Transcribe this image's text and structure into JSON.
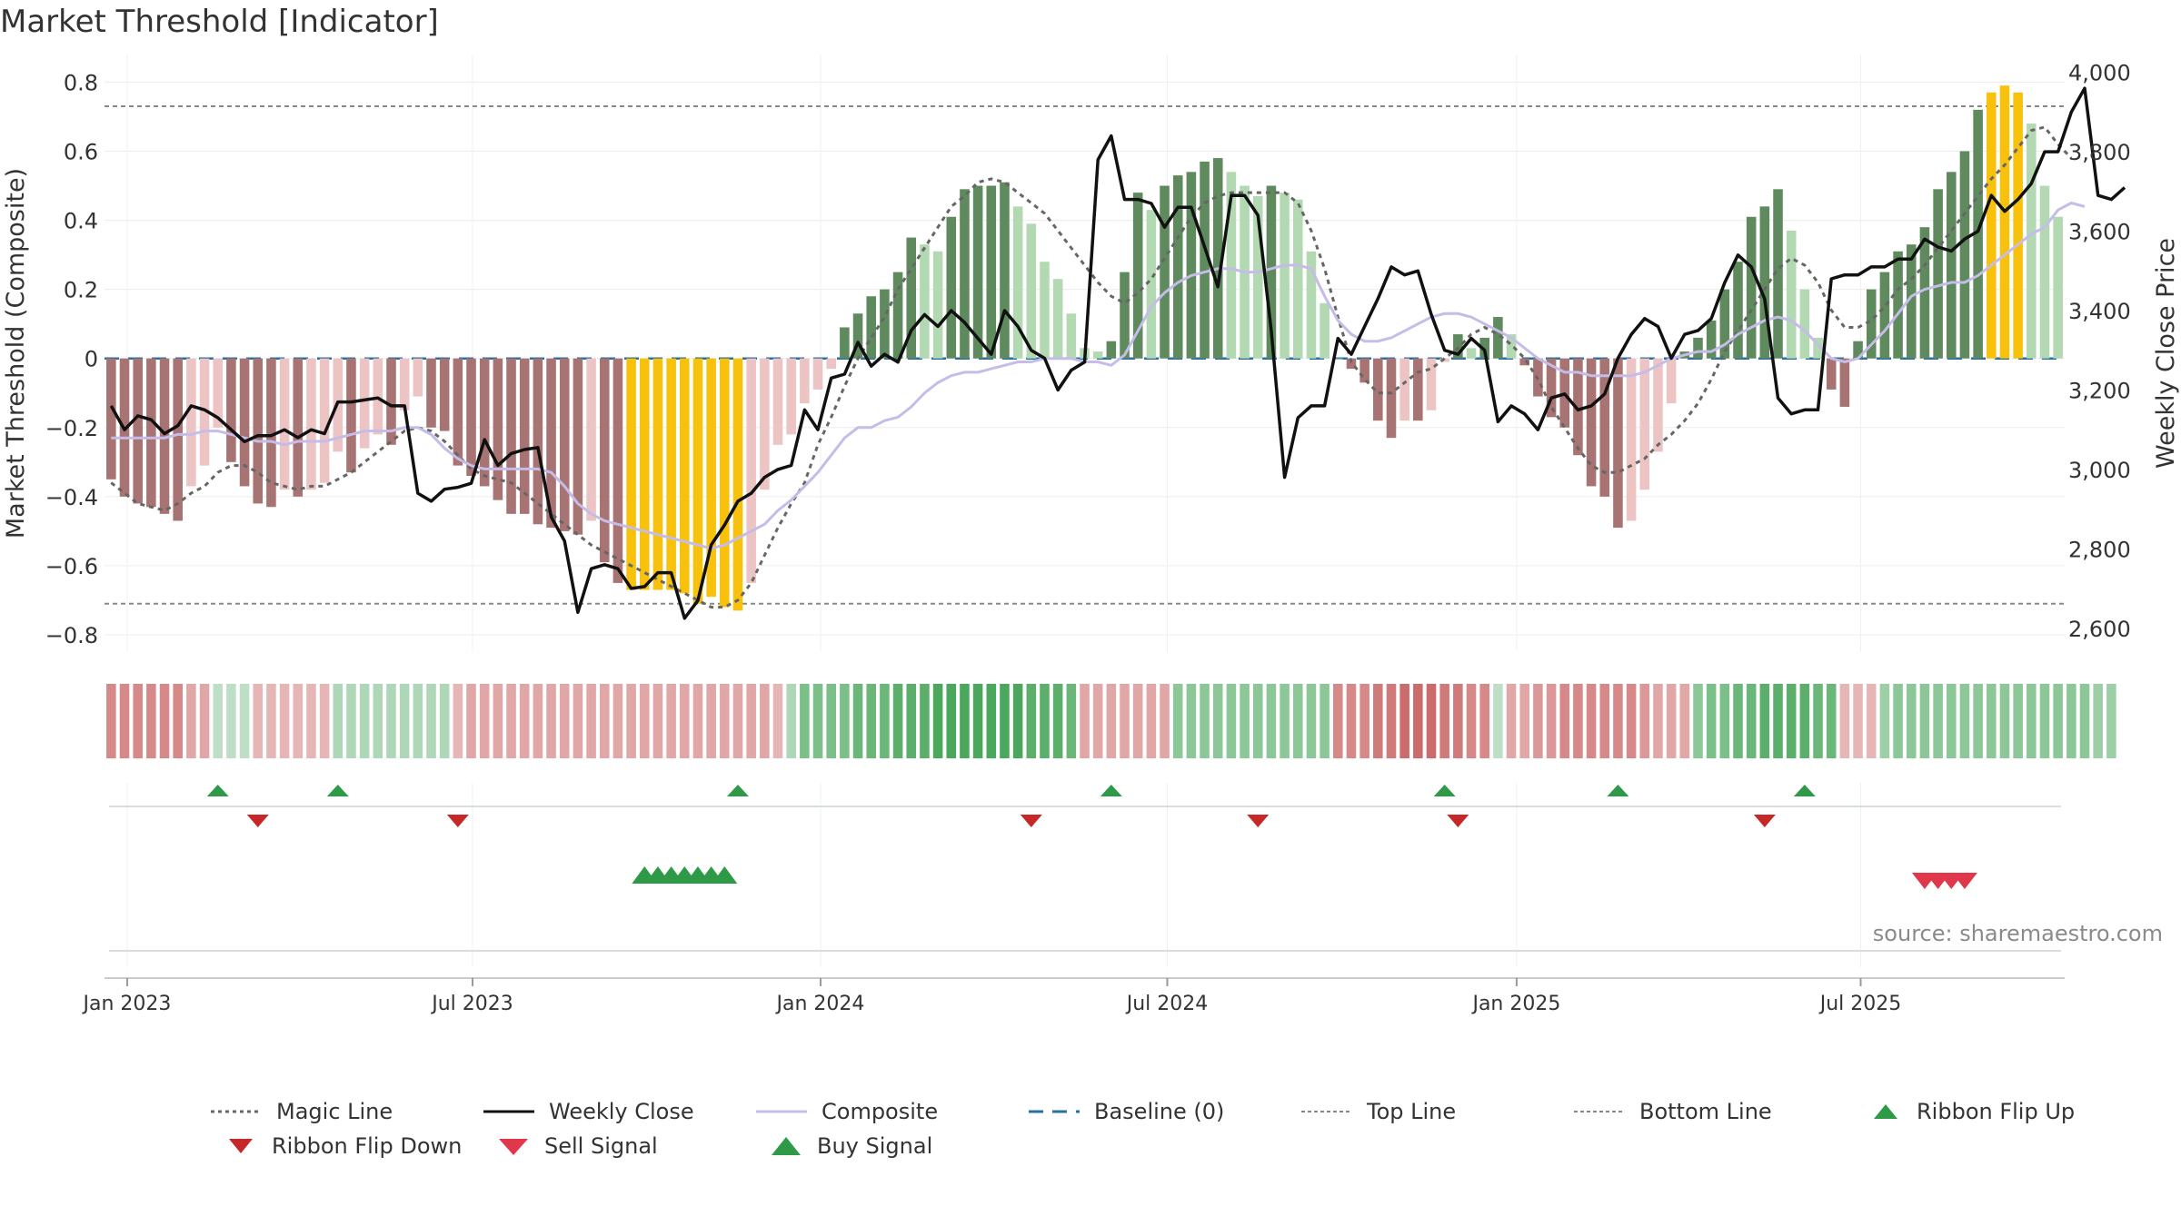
{
  "title": "Market Threshold [Indicator]",
  "source": "source: sharemaestro.com",
  "chart_data": {
    "type": "bar",
    "ylabel": "Market Threshold (Composite)",
    "y2label": "Weekly Close Price",
    "ylim": [
      -0.85,
      0.88
    ],
    "y2lim": [
      2540,
      4045
    ],
    "yticks": [
      0.8,
      0.6,
      0.4,
      0.2,
      0,
      -0.2,
      -0.4,
      -0.6,
      -0.8
    ],
    "ytick_labels": [
      "0.8",
      "0.6",
      "0.4",
      "0.2",
      "0",
      "−0.2",
      "−0.4",
      "−0.6",
      "−0.8"
    ],
    "y2ticks": [
      4000,
      3800,
      3600,
      3400,
      3200,
      3000,
      2800,
      2600
    ],
    "y2tick_labels": [
      "4,000",
      "3,800",
      "3,600",
      "3,400",
      "3,200",
      "3,000",
      "2,800",
      "2,600"
    ],
    "xticks": [
      {
        "week": 1.7,
        "label": "Jan 2023"
      },
      {
        "week": 27.6,
        "label": "Jul 2023"
      },
      {
        "week": 53.7,
        "label": "Jan 2024"
      },
      {
        "week": 79.7,
        "label": "Jul 2024"
      },
      {
        "week": 105.9,
        "label": "Jan 2025"
      },
      {
        "week": 131.7,
        "label": "Jul 2025"
      }
    ],
    "top_line": 0.73,
    "bottom_line": -0.71,
    "baseline": 0,
    "composite": [
      -0.35,
      -0.4,
      -0.42,
      -0.43,
      -0.45,
      -0.47,
      -0.37,
      -0.31,
      -0.2,
      -0.3,
      -0.37,
      -0.42,
      -0.43,
      -0.38,
      -0.4,
      -0.38,
      -0.36,
      -0.27,
      -0.33,
      -0.26,
      -0.22,
      -0.25,
      -0.15,
      -0.11,
      -0.2,
      -0.21,
      -0.31,
      -0.34,
      -0.37,
      -0.41,
      -0.45,
      -0.45,
      -0.48,
      -0.49,
      -0.5,
      -0.51,
      -0.47,
      -0.59,
      -0.65,
      -0.67,
      -0.67,
      -0.67,
      -0.67,
      -0.68,
      -0.71,
      -0.69,
      -0.72,
      -0.73,
      -0.65,
      -0.38,
      -0.25,
      -0.22,
      -0.13,
      -0.09,
      -0.03,
      0.09,
      0.13,
      0.18,
      0.2,
      0.25,
      0.35,
      0.33,
      0.31,
      0.41,
      0.49,
      0.5,
      0.5,
      0.51,
      0.44,
      0.39,
      0.28,
      0.23,
      0.13,
      0.03,
      0.02,
      0.05,
      0.25,
      0.48,
      0.43,
      0.5,
      0.53,
      0.54,
      0.57,
      0.58,
      0.54,
      0.5,
      0.47,
      0.5,
      0.48,
      0.46,
      0.31,
      0.16,
      0.0,
      -0.03,
      -0.07,
      -0.18,
      -0.23,
      -0.18,
      -0.18,
      -0.15,
      -0.01,
      0.07,
      0.03,
      0.06,
      0.12,
      0.07,
      -0.02,
      -0.11,
      -0.17,
      -0.2,
      -0.28,
      -0.37,
      -0.4,
      -0.49,
      -0.47,
      -0.38,
      -0.27,
      -0.13,
      0.02,
      0.06,
      0.11,
      0.2,
      0.28,
      0.41,
      0.44,
      0.49,
      0.37,
      0.2,
      0.06,
      -0.09,
      -0.14,
      0.05,
      0.2,
      0.25,
      0.31,
      0.33,
      0.38,
      0.49,
      0.54,
      0.6,
      0.72,
      0.77,
      0.79,
      0.77,
      0.68,
      0.5,
      0.41
    ],
    "composite_line": [
      -0.23,
      -0.23,
      -0.23,
      -0.23,
      -0.23,
      -0.22,
      -0.22,
      -0.21,
      -0.21,
      -0.22,
      -0.23,
      -0.24,
      -0.24,
      -0.25,
      -0.24,
      -0.24,
      -0.24,
      -0.23,
      -0.22,
      -0.21,
      -0.21,
      -0.21,
      -0.2,
      -0.2,
      -0.22,
      -0.26,
      -0.29,
      -0.31,
      -0.32,
      -0.32,
      -0.32,
      -0.32,
      -0.32,
      -0.33,
      -0.37,
      -0.42,
      -0.45,
      -0.47,
      -0.48,
      -0.49,
      -0.5,
      -0.51,
      -0.52,
      -0.53,
      -0.54,
      -0.55,
      -0.54,
      -0.52,
      -0.5,
      -0.48,
      -0.44,
      -0.41,
      -0.37,
      -0.33,
      -0.28,
      -0.23,
      -0.2,
      -0.2,
      -0.18,
      -0.17,
      -0.14,
      -0.1,
      -0.07,
      -0.05,
      -0.04,
      -0.04,
      -0.03,
      -0.02,
      -0.01,
      -0.01,
      0.0,
      0.0,
      0.0,
      -0.01,
      -0.01,
      -0.02,
      0.01,
      0.08,
      0.15,
      0.19,
      0.22,
      0.24,
      0.25,
      0.26,
      0.26,
      0.25,
      0.25,
      0.26,
      0.27,
      0.27,
      0.26,
      0.18,
      0.11,
      0.07,
      0.05,
      0.05,
      0.06,
      0.08,
      0.1,
      0.12,
      0.13,
      0.13,
      0.12,
      0.1,
      0.08,
      0.06,
      0.03,
      0.0,
      -0.02,
      -0.04,
      -0.04,
      -0.05,
      -0.05,
      -0.05,
      -0.05,
      -0.04,
      -0.02,
      0.0,
      0.01,
      0.02,
      0.02,
      0.04,
      0.07,
      0.09,
      0.11,
      0.12,
      0.11,
      0.08,
      0.04,
      0.0,
      -0.01,
      0.0,
      0.04,
      0.08,
      0.13,
      0.18,
      0.2,
      0.21,
      0.22,
      0.22,
      0.24,
      0.27,
      0.3,
      0.33,
      0.36,
      0.38,
      0.43,
      0.45,
      0.44
    ],
    "magic_line": [
      -0.36,
      -0.39,
      -0.42,
      -0.43,
      -0.44,
      -0.42,
      -0.39,
      -0.37,
      -0.33,
      -0.31,
      -0.31,
      -0.33,
      -0.36,
      -0.37,
      -0.38,
      -0.37,
      -0.37,
      -0.35,
      -0.33,
      -0.3,
      -0.27,
      -0.24,
      -0.21,
      -0.2,
      -0.21,
      -0.24,
      -0.28,
      -0.32,
      -0.34,
      -0.35,
      -0.36,
      -0.39,
      -0.42,
      -0.45,
      -0.48,
      -0.51,
      -0.54,
      -0.56,
      -0.58,
      -0.6,
      -0.62,
      -0.64,
      -0.66,
      -0.68,
      -0.7,
      -0.72,
      -0.72,
      -0.7,
      -0.65,
      -0.57,
      -0.49,
      -0.42,
      -0.36,
      -0.25,
      -0.17,
      -0.08,
      0.0,
      0.06,
      0.12,
      0.2,
      0.26,
      0.32,
      0.38,
      0.44,
      0.47,
      0.51,
      0.52,
      0.51,
      0.48,
      0.45,
      0.42,
      0.37,
      0.32,
      0.27,
      0.22,
      0.18,
      0.16,
      0.19,
      0.23,
      0.29,
      0.35,
      0.41,
      0.45,
      0.47,
      0.48,
      0.48,
      0.48,
      0.48,
      0.48,
      0.45,
      0.37,
      0.26,
      0.12,
      -0.01,
      -0.06,
      -0.1,
      -0.1,
      -0.07,
      -0.04,
      -0.03,
      0.0,
      0.03,
      0.07,
      0.09,
      0.07,
      0.04,
      0.0,
      -0.06,
      -0.14,
      -0.2,
      -0.26,
      -0.31,
      -0.33,
      -0.33,
      -0.31,
      -0.29,
      -0.25,
      -0.22,
      -0.18,
      -0.13,
      -0.06,
      0.02,
      0.08,
      0.14,
      0.2,
      0.26,
      0.29,
      0.27,
      0.22,
      0.14,
      0.09,
      0.09,
      0.11,
      0.15,
      0.2,
      0.23,
      0.27,
      0.32,
      0.37,
      0.42,
      0.47,
      0.52,
      0.56,
      0.61,
      0.66,
      0.67,
      0.62,
      0.58
    ],
    "weekly_close": [
      3160,
      3100,
      3135,
      3125,
      3090,
      3110,
      3160,
      3150,
      3130,
      3100,
      3070,
      3085,
      3085,
      3100,
      3080,
      3100,
      3090,
      3170,
      3170,
      3175,
      3180,
      3160,
      3160,
      2940,
      2920,
      2950,
      2955,
      2965,
      3075,
      3010,
      3040,
      3050,
      3055,
      2880,
      2820,
      2640,
      2750,
      2760,
      2750,
      2700,
      2705,
      2740,
      2740,
      2625,
      2670,
      2810,
      2860,
      2920,
      2940,
      2980,
      3000,
      3010,
      3150,
      3100,
      3230,
      3240,
      3320,
      3260,
      3290,
      3270,
      3350,
      3390,
      3360,
      3400,
      3370,
      3330,
      3290,
      3400,
      3360,
      3300,
      3280,
      3200,
      3250,
      3270,
      3780,
      3840,
      3680,
      3680,
      3670,
      3610,
      3660,
      3660,
      3560,
      3460,
      3690,
      3690,
      3640,
      3350,
      2980,
      3130,
      3160,
      3160,
      3330,
      3290,
      3360,
      3430,
      3510,
      3490,
      3500,
      3390,
      3300,
      3290,
      3330,
      3300,
      3120,
      3160,
      3140,
      3100,
      3180,
      3190,
      3150,
      3160,
      3190,
      3280,
      3340,
      3380,
      3360,
      3280,
      3340,
      3350,
      3380,
      3470,
      3540,
      3510,
      3430,
      3180,
      3140,
      3150,
      3150,
      3480,
      3490,
      3490,
      3510,
      3510,
      3530,
      3530,
      3580,
      3560,
      3550,
      3580,
      3600,
      3690,
      3650,
      3680,
      3720,
      3800,
      3800,
      3900,
      3960,
      3690,
      3680,
      3710
    ],
    "ribbon": [
      -0.5,
      -0.5,
      -0.5,
      -0.5,
      -0.5,
      -0.5,
      -0.3,
      -0.3,
      0.1,
      0.1,
      0.1,
      -0.2,
      -0.2,
      -0.2,
      -0.2,
      -0.2,
      -0.2,
      0.2,
      0.2,
      0.2,
      0.2,
      0.2,
      0.2,
      0.2,
      0.2,
      0.2,
      -0.2,
      -0.3,
      -0.3,
      -0.3,
      -0.3,
      -0.3,
      -0.3,
      -0.3,
      -0.3,
      -0.3,
      -0.3,
      -0.3,
      -0.3,
      -0.3,
      -0.3,
      -0.3,
      -0.3,
      -0.3,
      -0.3,
      -0.3,
      -0.3,
      -0.3,
      -0.3,
      -0.3,
      -0.2,
      0.2,
      0.5,
      0.5,
      0.5,
      0.5,
      0.6,
      0.6,
      0.6,
      0.7,
      0.7,
      0.7,
      0.8,
      0.8,
      0.8,
      0.8,
      0.8,
      0.8,
      0.8,
      0.7,
      0.7,
      0.7,
      0.6,
      -0.3,
      -0.3,
      -0.3,
      -0.3,
      -0.3,
      -0.3,
      -0.3,
      0.4,
      0.4,
      0.4,
      0.4,
      0.4,
      0.4,
      0.4,
      0.4,
      0.4,
      0.4,
      0.4,
      0.4,
      -0.5,
      -0.5,
      -0.5,
      -0.6,
      -0.6,
      -0.7,
      -0.7,
      -0.7,
      -0.6,
      -0.6,
      -0.5,
      -0.5,
      0.1,
      -0.3,
      -0.3,
      -0.4,
      -0.4,
      -0.5,
      -0.5,
      -0.5,
      -0.5,
      -0.5,
      -0.5,
      -0.4,
      -0.3,
      -0.3,
      -0.3,
      0.4,
      0.5,
      0.5,
      0.6,
      0.6,
      0.7,
      0.7,
      0.7,
      0.7,
      0.6,
      0.6,
      -0.2,
      -0.2,
      -0.2,
      0.3,
      0.4,
      0.4,
      0.4,
      0.4,
      0.4,
      0.4,
      0.4,
      0.4,
      0.4,
      0.4,
      0.4,
      0.4,
      0.4,
      0.4,
      0.4,
      0.3,
      0.3
    ],
    "ribbon_flip_up": [
      8,
      17,
      47,
      75,
      100,
      113,
      127
    ],
    "ribbon_flip_down": [
      11,
      26,
      69,
      86,
      101,
      124
    ],
    "buy_signal": [
      40,
      41,
      42,
      43,
      44,
      45,
      46
    ],
    "sell_signal": [
      136,
      137,
      138,
      139
    ]
  },
  "legend": [
    {
      "key": "magic",
      "label": "Magic Line"
    },
    {
      "key": "close",
      "label": "Weekly Close"
    },
    {
      "key": "composite",
      "label": "Composite"
    },
    {
      "key": "baseline",
      "label": "Baseline (0)"
    },
    {
      "key": "top",
      "label": "Top Line"
    },
    {
      "key": "bottom",
      "label": "Bottom Line"
    },
    {
      "key": "flipup",
      "label": "Ribbon Flip Up"
    },
    {
      "key": "flipdown",
      "label": "Ribbon Flip Down"
    },
    {
      "key": "sell",
      "label": "Sell Signal"
    },
    {
      "key": "buy",
      "label": "Buy Signal"
    }
  ],
  "colors": {
    "bull_strong": "#5e8a5e",
    "bull_weak": "#b3d9b3",
    "bear_strong": "#a87373",
    "bear_weak": "#ecc4c4",
    "extreme": "#f7c10c",
    "close_line": "#111111",
    "composite_line": "#c5bce8",
    "magic_line": "#666666",
    "baseline": "#2a6fa0",
    "flip_up": "#2e9a48",
    "flip_down": "#c62828",
    "sell": "#e0384a",
    "buy": "#2e9a48"
  }
}
